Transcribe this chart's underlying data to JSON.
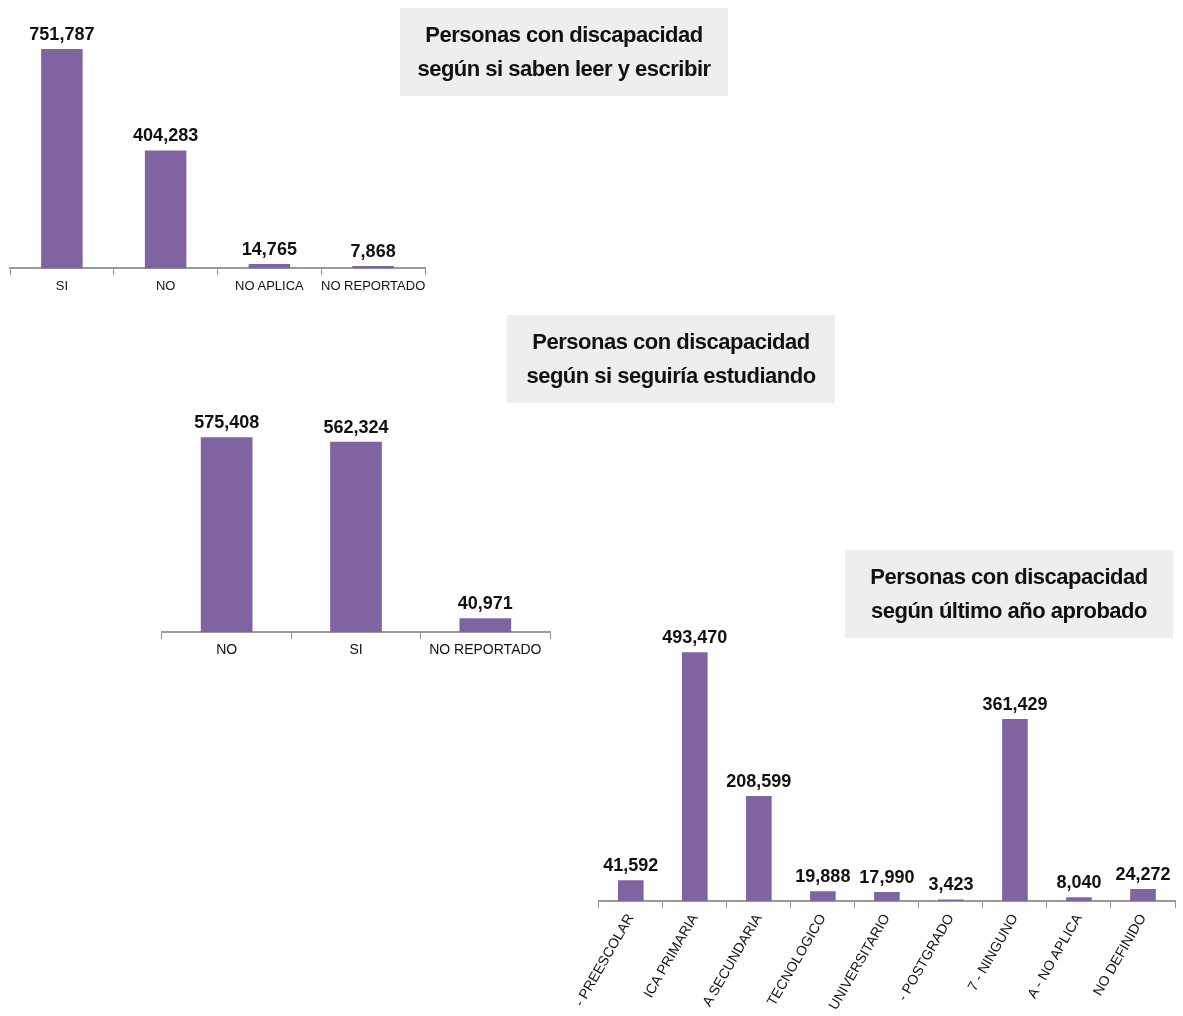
{
  "chart_data": [
    {
      "type": "bar",
      "title": "Personas con discapacidad según si saben leer y escribir",
      "categories": [
        "SI",
        "NO",
        "NO APLICA",
        "NO REPORTADO"
      ],
      "values": [
        751787,
        404283,
        14765,
        7868
      ],
      "value_labels": [
        "751,787",
        "404,283",
        "14,765",
        "7,868"
      ],
      "color": "#8064a2",
      "tick_labels": "x"
    },
    {
      "type": "bar",
      "title": "Personas con discapacidad según si seguiría estudiando",
      "categories": [
        "NO",
        "SI",
        "NO REPORTADO"
      ],
      "values": [
        575408,
        562324,
        40971
      ],
      "value_labels": [
        "575,408",
        "562,324",
        "40,971"
      ],
      "color": "#8064a2",
      "tick_labels": "x"
    },
    {
      "type": "bar",
      "title": "Personas con discapacidad según último año aprobado",
      "categories": [
        "- PREESCOLAR",
        "ICA PRIMARIA",
        "A SECUNDARIA",
        "TECNOLOGICO",
        "UNIVERSITARIO",
        "- POSTGRADO",
        "7 - NINGUNO",
        "A - NO APLICA",
        "NO DEFINIDO"
      ],
      "values": [
        41592,
        493470,
        208599,
        19888,
        17990,
        3423,
        361429,
        8040,
        24272
      ],
      "value_labels": [
        "41,592",
        "493,470",
        "208,599",
        "19,888",
        "17,990",
        "3,423",
        "361,429",
        "8,040",
        "24,272"
      ],
      "color": "#8064a2",
      "tick_labels": "x"
    }
  ]
}
